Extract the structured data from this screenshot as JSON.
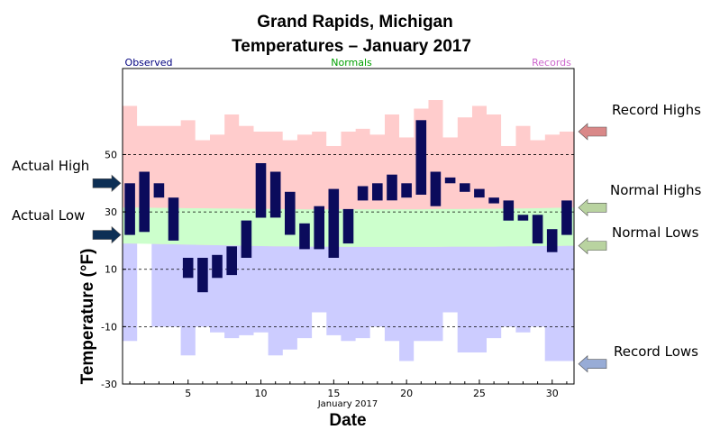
{
  "chart_data": {
    "type": "bar",
    "title": "Grand Rapids, Michigan",
    "subtitle": "Temperatures – January 2017",
    "header_labels": {
      "observed": "Observed",
      "normals": "Normals",
      "records": "Records"
    },
    "xlabel": "Date",
    "x_sublabel": "January 2017",
    "ylabel": "Temperature (°F)",
    "ylim": [
      -30,
      80
    ],
    "xlim": [
      0.5,
      31.5
    ],
    "y_ticks": [
      -30,
      -10,
      10,
      30,
      50
    ],
    "x_ticks": [
      5,
      10,
      15,
      20,
      25,
      30
    ],
    "dashed_gridlines_y": [
      -10,
      10,
      30,
      50
    ],
    "days": [
      1,
      2,
      3,
      4,
      5,
      6,
      7,
      8,
      9,
      10,
      11,
      12,
      13,
      14,
      15,
      16,
      17,
      18,
      19,
      20,
      21,
      22,
      23,
      24,
      25,
      26,
      27,
      28,
      29,
      30,
      31
    ],
    "series": [
      {
        "name": "Actual High",
        "values": [
          40,
          44,
          40,
          35,
          14,
          14,
          15,
          18,
          27,
          47,
          44,
          37,
          26,
          32,
          38,
          31,
          39,
          40,
          43,
          40,
          62,
          44,
          42,
          40,
          38,
          35,
          34,
          29,
          29,
          24,
          34
        ]
      },
      {
        "name": "Actual Low",
        "values": [
          22,
          23,
          35,
          20,
          7,
          2,
          7,
          8,
          14,
          28,
          28,
          22,
          17,
          17,
          14,
          19,
          34,
          34,
          34,
          35,
          36,
          32,
          40,
          37,
          35,
          33,
          27,
          27,
          19,
          16,
          22
        ]
      },
      {
        "name": "Normal Highs",
        "values": [
          31.5,
          31.5,
          31.4,
          31.4,
          31.3,
          31.3,
          31.2,
          31.2,
          31.1,
          31.1,
          31.0,
          31.0,
          30.9,
          30.9,
          30.9,
          30.9,
          30.9,
          30.9,
          30.9,
          30.9,
          30.9,
          31.0,
          31.0,
          31.0,
          31.1,
          31.1,
          31.2,
          31.2,
          31.3,
          31.4,
          31.5
        ]
      },
      {
        "name": "Normal Lows",
        "values": [
          19.0,
          18.9,
          18.8,
          18.7,
          18.6,
          18.5,
          18.4,
          18.3,
          18.2,
          18.1,
          18.0,
          18.0,
          17.9,
          17.9,
          17.9,
          17.8,
          17.8,
          17.8,
          17.8,
          17.8,
          17.8,
          17.8,
          17.9,
          17.9,
          17.9,
          17.9,
          18.0,
          18.0,
          18.1,
          18.1,
          18.2
        ]
      },
      {
        "name": "Record Highs",
        "values": [
          67,
          60,
          60,
          60,
          62,
          55,
          57,
          64,
          60,
          58,
          58,
          55,
          57,
          58,
          53,
          58,
          59,
          57,
          64,
          56,
          66,
          69,
          56,
          63,
          67,
          64,
          53,
          60,
          55,
          57,
          58
        ]
      },
      {
        "name": "Record Lows",
        "values": [
          -15,
          20,
          -10,
          -10,
          -20,
          -10,
          -12,
          -14,
          -13,
          -12,
          -20,
          -18,
          -14,
          -5,
          -13,
          -15,
          -14,
          -10,
          -15,
          -22,
          -15,
          -15,
          -5,
          -19,
          -19,
          -14,
          -10,
          -12,
          -10,
          -22,
          -22
        ]
      }
    ],
    "legend_labels": {
      "actual_high": "Actual High",
      "actual_low": "Actual Low",
      "record_highs": "Record Highs",
      "normal_highs": "Normal Highs",
      "normal_lows": "Normal Lows",
      "record_lows": "Record Lows"
    },
    "colors": {
      "observed_bar": "#0b0b5c",
      "record_high_band": "#ffcccc",
      "normal_band": "#ccffcc",
      "record_low_band": "#ccccff",
      "observed_header": "#00007f",
      "normals_header": "#00a000",
      "records_header": "#cc66cc",
      "arrow_actual": "#0d2f55",
      "arrow_record_high": "#d98888",
      "arrow_normal": "#b9d3a0",
      "arrow_record_low": "#98acd6"
    }
  }
}
